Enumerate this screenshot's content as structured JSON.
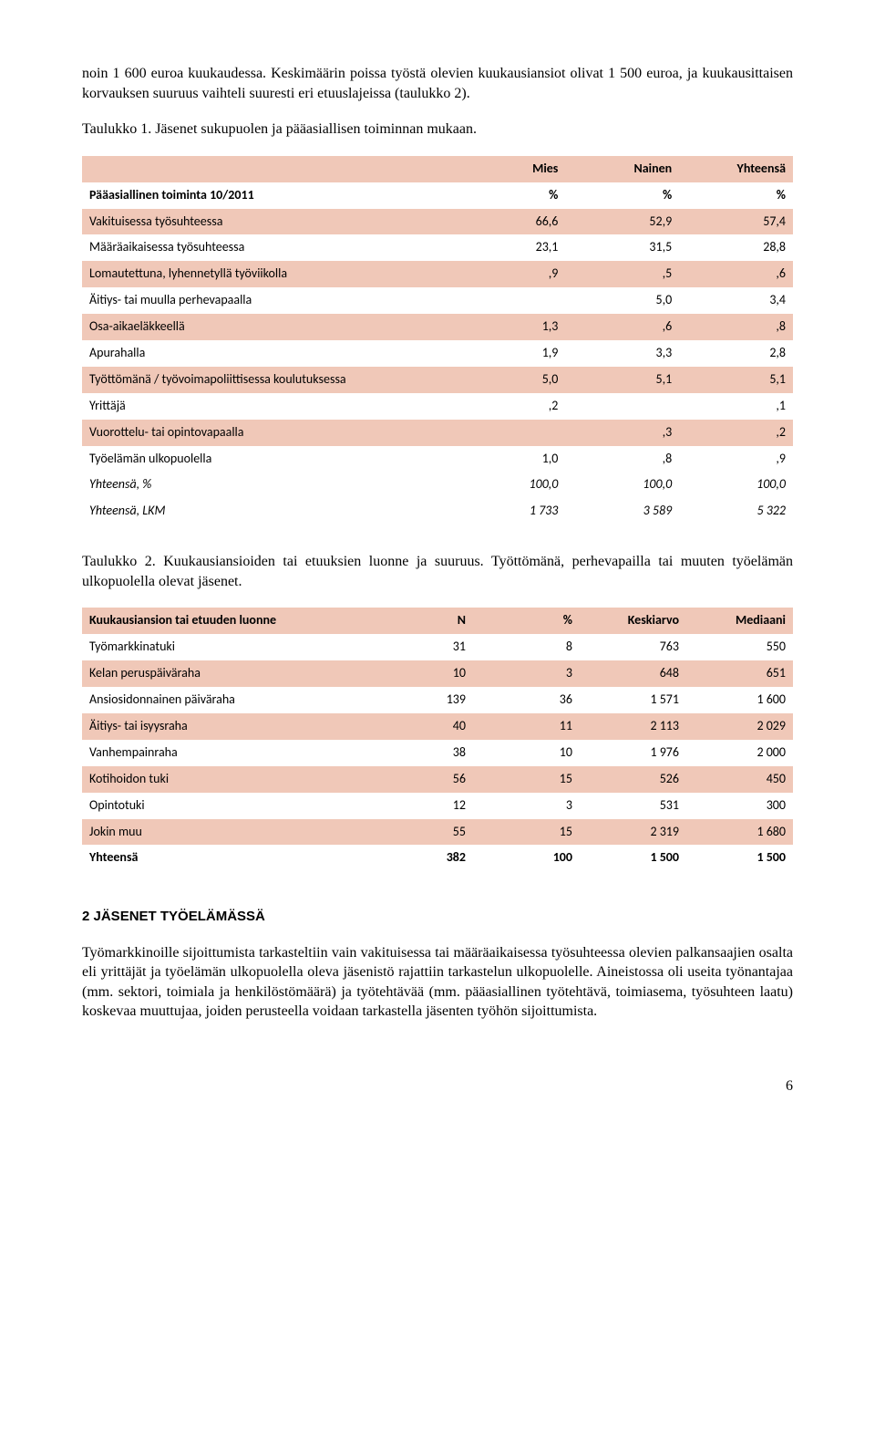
{
  "intro_p1": "noin 1 600 euroa kuukaudessa. Keskimäärin poissa työstä olevien kuukausiansiot olivat 1 500 euroa, ja kuukausittaisen korvauksen suuruus vaihteli suuresti eri etuuslajeissa (taulukko 2).",
  "table1_caption": "Taulukko 1. Jäsenet sukupuolen ja pääasiallisen toiminnan mukaan.",
  "t1": {
    "h": [
      "",
      "Mies",
      "Nainen",
      "Yhteensä"
    ],
    "sub": [
      "Pääasiallinen toiminta 10/2011",
      "%",
      "%",
      "%"
    ],
    "rows": [
      [
        "Vakituisessa työsuhteessa",
        "66,6",
        "52,9",
        "57,4"
      ],
      [
        "Määräaikaisessa työsuhteessa",
        "23,1",
        "31,5",
        "28,8"
      ],
      [
        "Lomautettuna, lyhennetyllä työviikolla",
        ",9",
        ",5",
        ",6"
      ],
      [
        "Äitiys- tai muulla perhevapaalla",
        "",
        "5,0",
        "3,4"
      ],
      [
        "Osa-aikaeläkkeellä",
        "1,3",
        ",6",
        ",8"
      ],
      [
        "Apurahalla",
        "1,9",
        "3,3",
        "2,8"
      ],
      [
        "Työttömänä / työvoimapoliittisessa koulutuksessa",
        "5,0",
        "5,1",
        "5,1"
      ],
      [
        "Yrittäjä",
        ",2",
        "",
        ",1"
      ],
      [
        "Vuorottelu- tai opintovapaalla",
        "",
        ",3",
        ",2"
      ],
      [
        "Työelämän ulkopuolella",
        "1,0",
        ",8",
        ",9"
      ]
    ],
    "totals": [
      [
        "Yhteensä, %",
        "100,0",
        "100,0",
        "100,0"
      ],
      [
        "Yhteensä, LKM",
        "1 733",
        "3 589",
        "5 322"
      ]
    ]
  },
  "table2_caption": "Taulukko 2. Kuukausiansioiden tai etuuksien luonne ja suuruus. Työttömänä, perhevapailla tai muuten työelämän ulkopuolella olevat jäsenet.",
  "t2": {
    "h": [
      "Kuukausiansion tai etuuden luonne",
      "N",
      "%",
      "Keskiarvo",
      "Mediaani"
    ],
    "rows": [
      [
        "Työmarkkinatuki",
        "31",
        "8",
        "763",
        "550"
      ],
      [
        "Kelan peruspäiväraha",
        "10",
        "3",
        "648",
        "651"
      ],
      [
        "Ansiosidonnainen päiväraha",
        "139",
        "36",
        "1 571",
        "1 600"
      ],
      [
        "Äitiys- tai isyysraha",
        "40",
        "11",
        "2 113",
        "2 029"
      ],
      [
        "Vanhempainraha",
        "38",
        "10",
        "1 976",
        "2 000"
      ],
      [
        "Kotihoidon tuki",
        "56",
        "15",
        "526",
        "450"
      ],
      [
        "Opintotuki",
        "12",
        "3",
        "531",
        "300"
      ],
      [
        "Jokin muu",
        "55",
        "15",
        "2 319",
        "1 680"
      ]
    ],
    "total": [
      "Yhteensä",
      "382",
      "100",
      "1 500",
      "1 500"
    ]
  },
  "section_heading": "2 JÄSENET TYÖELÄMÄSSÄ",
  "body_p": "Työmarkkinoille sijoittumista tarkasteltiin vain vakituisessa tai määräaikaisessa työsuhteessa olevien palkansaajien osalta eli yrittäjät ja työelämän ulkopuolella oleva jäsenistö rajattiin tarkastelun ulkopuolelle. Aineistossa oli useita työnantajaa (mm. sektori, toimiala ja henkilöstömäärä) ja työtehtävää (mm. pääasiallinen työtehtävä, toimiasema, työsuhteen laatu) koskevaa muuttujaa, joiden perusteella voidaan tarkastella jäsenten työhön sijoittumista.",
  "page_num": "6"
}
